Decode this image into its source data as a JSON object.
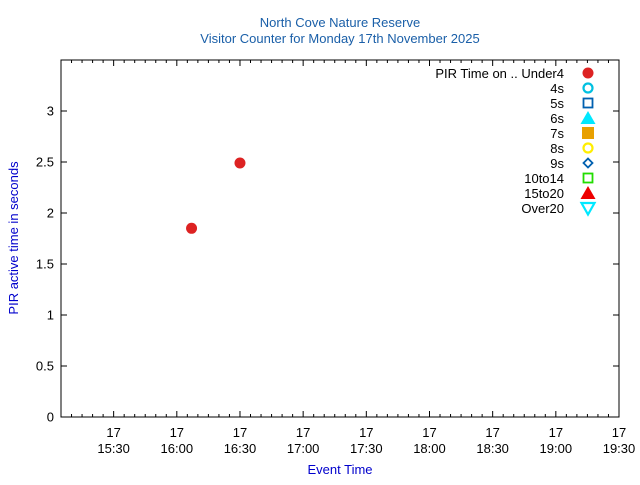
{
  "chart_data": {
    "type": "scatter",
    "title": "North Cove Nature Reserve",
    "subtitle": "Visitor Counter for Monday 17th November 2025",
    "xlabel": "Event Time",
    "ylabel": "PIR active time in seconds",
    "ylim": [
      0,
      3.5
    ],
    "yticks": [
      0,
      0.5,
      1,
      1.5,
      2,
      2.5,
      3
    ],
    "ytick_labels": [
      "0",
      "0.5",
      "1",
      "1.5",
      "2",
      "2.5",
      "3"
    ],
    "xlim": [
      "15:05",
      "19:30"
    ],
    "xticks": [
      {
        "time": "15:30",
        "day": "17",
        "label": "15:30"
      },
      {
        "time": "16:00",
        "day": "17",
        "label": "16:00"
      },
      {
        "time": "16:30",
        "day": "17",
        "label": "16:30"
      },
      {
        "time": "17:00",
        "day": "17",
        "label": "17:00"
      },
      {
        "time": "17:30",
        "day": "17",
        "label": "17:30"
      },
      {
        "time": "18:00",
        "day": "17",
        "label": "18:00"
      },
      {
        "time": "18:30",
        "day": "17",
        "label": "18:30"
      },
      {
        "time": "19:00",
        "day": "17",
        "label": "19:00"
      },
      {
        "time": "19:30",
        "day": "17",
        "label": "19:30"
      }
    ],
    "minor_ticks_per_major": 6,
    "grid": false,
    "legend_placement": "top-right",
    "series": [
      {
        "name": "PIR Time on .. Under4",
        "marker": "circle-filled",
        "color": "#dd2222",
        "points": [
          {
            "x": "16:07",
            "y": 1.85
          },
          {
            "x": "16:30",
            "y": 2.49
          }
        ]
      },
      {
        "name": "4s",
        "marker": "circle-open",
        "color": "#00c0e0",
        "points": []
      },
      {
        "name": "5s",
        "marker": "square-open",
        "color": "#0060b0",
        "points": []
      },
      {
        "name": "6s",
        "marker": "triangle-filled",
        "color": "#00e8ff",
        "points": []
      },
      {
        "name": "7s",
        "marker": "square-filled",
        "color": "#e8a000",
        "points": []
      },
      {
        "name": "8s",
        "marker": "circle-open",
        "color": "#ffee00",
        "points": []
      },
      {
        "name": "9s",
        "marker": "diamond-open",
        "color": "#0060b0",
        "points": []
      },
      {
        "name": "10to14",
        "marker": "square-open",
        "color": "#22dd00",
        "points": []
      },
      {
        "name": "15to20",
        "marker": "triangle-filled",
        "color": "#ee0000",
        "points": []
      },
      {
        "name": "Over20",
        "marker": "triangle-down-open",
        "color": "#00e8ff",
        "points": []
      }
    ],
    "colors": {
      "title": "#1a5fa8",
      "axis_label": "#0000cc",
      "axis": "#000000"
    }
  }
}
